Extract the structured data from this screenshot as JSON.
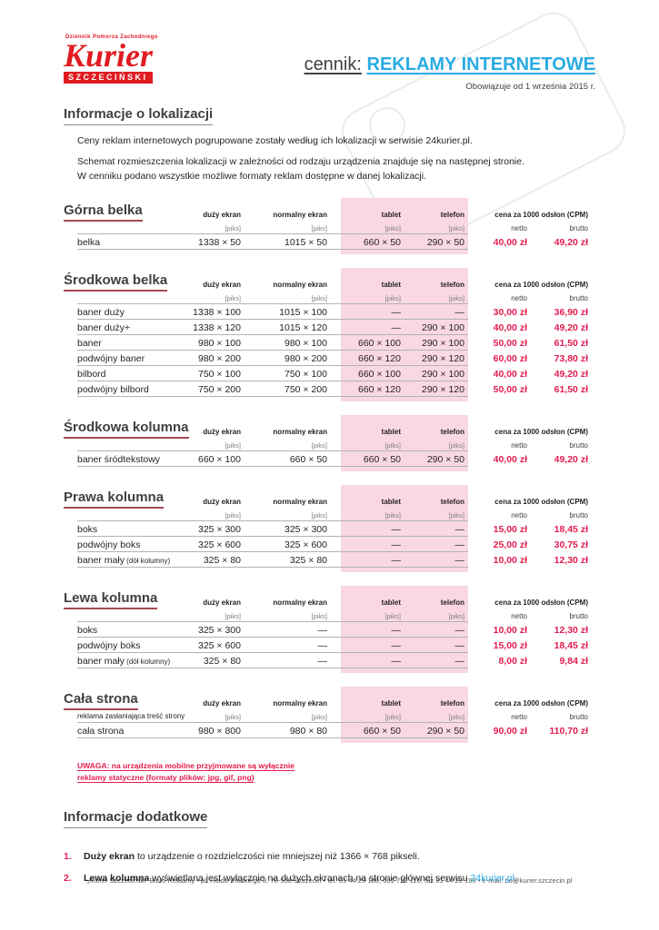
{
  "logo": {
    "tagline": "Dziennik Pomorza Zachodniego",
    "name": "Kurier",
    "subtitle": "SZCZECIŃSKI"
  },
  "header": {
    "title_prefix": "cennik:",
    "title_main": "REKLAMY INTERNETOWE",
    "valid_from": "Obowiązuje od 1 września 2015 r."
  },
  "colors": {
    "accent_cyan": "#29abe2",
    "price_red": "#e21d4f",
    "pink_band": "#f9d8e2",
    "logo_red": "#e11b22",
    "title_underline_red": "#a34a52"
  },
  "info": {
    "title": "Informacje o lokalizacji",
    "lines": [
      "Ceny reklam internetowych pogrupowane zostały według ich lokalizacji w serwisie 24kurier.pl.",
      "Schemat rozmieszczenia lokalizacji w zależności od rodzaju urządzenia znajduje się na następnej stronie.",
      "W cenniku podano wszystkie możliwe formaty reklam dostępne w danej lokalizacji."
    ]
  },
  "table_headers": {
    "col_large": "duży ekran",
    "col_normal": "normalny ekran",
    "col_tablet": "tablet",
    "col_telefon": "telefon",
    "price_header": "cena za 1000 odsłon (CPM)",
    "unit": "[piks]",
    "netto": "netto",
    "brutto": "brutto"
  },
  "tables": [
    {
      "title": "Górna belka",
      "subtitle": "",
      "rows": [
        {
          "name": "belka",
          "note": "",
          "large": "1338 × 50",
          "normal": "1015 × 50",
          "tablet": "660 × 50",
          "telefon": "290 × 50",
          "netto": "40,00 zł",
          "brutto": "49,20 zł"
        }
      ]
    },
    {
      "title": "Środkowa belka",
      "subtitle": "",
      "rows": [
        {
          "name": "baner duży",
          "note": "",
          "large": "1338 × 100",
          "normal": "1015 × 100",
          "tablet": "—",
          "telefon": "—",
          "netto": "30,00 zł",
          "brutto": "36,90 zł"
        },
        {
          "name": "baner duży+",
          "note": "",
          "large": "1338 × 120",
          "normal": "1015 × 120",
          "tablet": "—",
          "telefon": "290 × 100",
          "netto": "40,00 zł",
          "brutto": "49,20 zł"
        },
        {
          "name": "baner",
          "note": "",
          "large": "980 × 100",
          "normal": "980 × 100",
          "tablet": "660 × 100",
          "telefon": "290 × 100",
          "netto": "50,00 zł",
          "brutto": "61,50 zł"
        },
        {
          "name": "podwójny baner",
          "note": "",
          "large": "980 × 200",
          "normal": "980 × 200",
          "tablet": "660 × 120",
          "telefon": "290 × 120",
          "netto": "60,00 zł",
          "brutto": "73,80 zł"
        },
        {
          "name": "bilbord",
          "note": "",
          "large": "750 × 100",
          "normal": "750 × 100",
          "tablet": "660 × 100",
          "telefon": "290 × 100",
          "netto": "40,00 zł",
          "brutto": "49,20 zł"
        },
        {
          "name": "podwójny bilbord",
          "note": "",
          "large": "750 × 200",
          "normal": "750 × 200",
          "tablet": "660 × 120",
          "telefon": "290 × 120",
          "netto": "50,00 zł",
          "brutto": "61,50 zł"
        }
      ]
    },
    {
      "title": "Środkowa kolumna",
      "subtitle": "",
      "rows": [
        {
          "name": "baner śródtekstowy",
          "note": "",
          "large": "660 × 100",
          "normal": "660 × 50",
          "tablet": "660 × 50",
          "telefon": "290 × 50",
          "netto": "40,00 zł",
          "brutto": "49,20 zł"
        }
      ]
    },
    {
      "title": "Prawa kolumna",
      "subtitle": "",
      "rows": [
        {
          "name": "boks",
          "note": "",
          "large": "325 × 300",
          "normal": "325 × 300",
          "tablet": "—",
          "telefon": "—",
          "netto": "15,00 zł",
          "brutto": "18,45 zł"
        },
        {
          "name": "podwójny boks",
          "note": "",
          "large": "325 × 600",
          "normal": "325 × 600",
          "tablet": "—",
          "telefon": "—",
          "netto": "25,00 zł",
          "brutto": "30,75 zł"
        },
        {
          "name": "baner mały",
          "note": "(dół kolumny)",
          "large": "325 × 80",
          "normal": "325 × 80",
          "tablet": "—",
          "telefon": "—",
          "netto": "10,00 zł",
          "brutto": "12,30 zł"
        }
      ]
    },
    {
      "title": "Lewa kolumna",
      "subtitle": "",
      "rows": [
        {
          "name": "boks",
          "note": "",
          "large": "325 × 300",
          "normal": "—",
          "tablet": "—",
          "telefon": "—",
          "netto": "10,00 zł",
          "brutto": "12,30 zł"
        },
        {
          "name": "podwójny boks",
          "note": "",
          "large": "325 × 600",
          "normal": "—",
          "tablet": "—",
          "telefon": "—",
          "netto": "15,00 zł",
          "brutto": "18,45 zł"
        },
        {
          "name": "baner mały",
          "note": "(dół kolumny)",
          "large": "325 × 80",
          "normal": "—",
          "tablet": "—",
          "telefon": "—",
          "netto": "8,00 zł",
          "brutto": "9,84 zł"
        }
      ]
    },
    {
      "title": "Cała strona",
      "subtitle": "reklama zasłaniająca treść strony",
      "rows": [
        {
          "name": "cała strona",
          "note": "",
          "large": "980 × 800",
          "normal": "980 × 80",
          "tablet": "660 × 50",
          "telefon": "290 × 50",
          "netto": "90,00 zł",
          "brutto": "110,70 zł"
        }
      ]
    }
  ],
  "uwaga": {
    "line1": "UWAGA: na urządzenia mobilne przyjmowane są wyłącznie",
    "line2": "reklamy statyczne (formaty plików: jpg, gif, png)"
  },
  "additional": {
    "title": "Informacje dodatkowe",
    "items": [
      {
        "num": "1.",
        "bold": "Duży ekran",
        "text": " to urządzenie o rozdzielczości nie mniejszej niż 1366 × 768 pikseli.",
        "link": "",
        "suffix": ""
      },
      {
        "num": "2.",
        "bold": "Lewa kolumna",
        "text": " wyświetlana jest wyłącznie na dużych ekranach na stronie głównej serwisu ",
        "link": "24kurier.pl",
        "suffix": "."
      }
    ]
  },
  "footer": {
    "text": "„Kurier Szczeciński” Biuro Reklamy • pl. Hołdu Pruskiego 8, 70-550 Szczecin • tel. 91 44 29 180, 601 722 110, fax 91 44 29 190 • e-mail: bo@kurier.szczecin.pl"
  }
}
